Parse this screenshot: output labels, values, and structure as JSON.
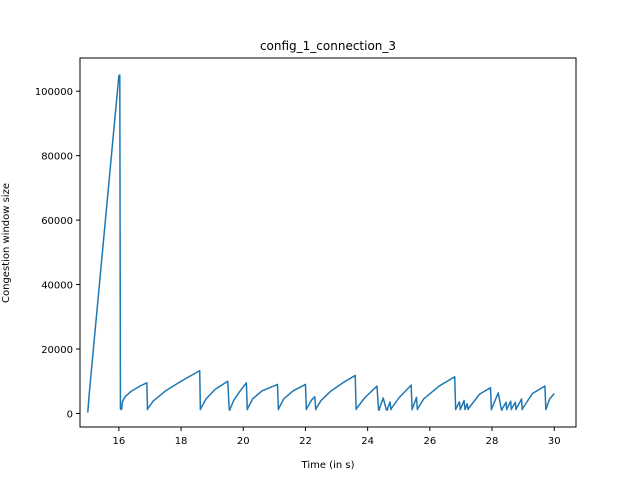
{
  "chart_data": {
    "type": "line",
    "title": "config_1_connection_3",
    "xlabel": "Time (in s)",
    "ylabel": "Congestion window size",
    "xlim": [
      14.75,
      30.7
    ],
    "ylim": [
      -4200,
      110300
    ],
    "xticks": [
      16,
      18,
      20,
      22,
      24,
      26,
      28,
      30
    ],
    "xtick_labels": [
      "16",
      "18",
      "20",
      "22",
      "24",
      "26",
      "28",
      "30"
    ],
    "yticks": [
      0,
      20000,
      40000,
      60000,
      80000,
      100000
    ],
    "ytick_labels": [
      "0",
      "20000",
      "40000",
      "60000",
      "80000",
      "100000"
    ],
    "grid": false,
    "color": "#1f77b4",
    "series": [
      {
        "x": [
          15.0,
          15.05,
          16.0,
          16.03,
          16.05,
          16.07,
          16.1,
          16.1,
          16.12,
          16.2,
          16.4,
          16.7,
          16.9,
          16.92,
          16.93,
          17.1,
          17.5,
          18.0,
          18.6,
          18.62,
          18.63,
          18.8,
          19.1,
          19.5,
          19.55,
          19.57,
          19.58,
          19.7,
          19.9,
          20.1,
          20.13,
          20.14,
          20.3,
          20.6,
          21.1,
          21.13,
          21.14,
          21.3,
          21.6,
          22.0,
          22.03,
          22.04,
          22.2,
          22.3,
          22.33,
          22.34,
          22.5,
          22.8,
          23.2,
          23.6,
          23.63,
          23.64,
          23.9,
          24.3,
          24.35,
          24.37,
          24.38,
          24.5,
          24.6,
          24.63,
          24.64,
          24.72,
          24.75,
          24.76,
          25.0,
          25.4,
          25.43,
          25.44,
          25.57,
          25.6,
          25.61,
          25.8,
          26.3,
          26.8,
          26.83,
          26.84,
          26.95,
          26.98,
          26.99,
          27.1,
          27.13,
          27.14,
          27.2,
          27.23,
          27.24,
          27.6,
          27.95,
          27.98,
          27.99,
          28.2,
          28.3,
          28.32,
          28.33,
          28.45,
          28.47,
          28.48,
          28.6,
          28.62,
          28.63,
          28.75,
          28.77,
          28.78,
          28.95,
          28.97,
          28.98,
          29.3,
          29.7,
          29.73,
          29.74,
          29.85,
          30.0
        ],
        "y": [
          300,
          6500,
          104800,
          105000,
          1500,
          1200,
          1600,
          2500,
          3800,
          5200,
          6900,
          8600,
          9500,
          1200,
          1500,
          3800,
          7000,
          10000,
          13300,
          1200,
          1500,
          4500,
          7500,
          10000,
          1200,
          1000,
          1500,
          4200,
          7000,
          9500,
          1200,
          1500,
          4500,
          7000,
          9000,
          1200,
          1500,
          4500,
          7000,
          9000,
          1200,
          1500,
          4200,
          5200,
          1200,
          1500,
          4000,
          6800,
          9500,
          11800,
          1200,
          1500,
          4800,
          8500,
          1200,
          1000,
          1500,
          4800,
          1200,
          1000,
          1500,
          3600,
          1200,
          1500,
          4800,
          8800,
          1200,
          1500,
          5000,
          1200,
          1500,
          4500,
          8500,
          11400,
          1200,
          1500,
          3600,
          1200,
          1500,
          4000,
          1200,
          1500,
          3000,
          1200,
          1500,
          6000,
          8000,
          1200,
          1500,
          6400,
          1200,
          1000,
          1500,
          3500,
          1200,
          1500,
          3800,
          1200,
          1500,
          3500,
          1200,
          1500,
          4500,
          1200,
          1500,
          6200,
          8500,
          1200,
          1500,
          4500,
          6200
        ]
      }
    ]
  }
}
